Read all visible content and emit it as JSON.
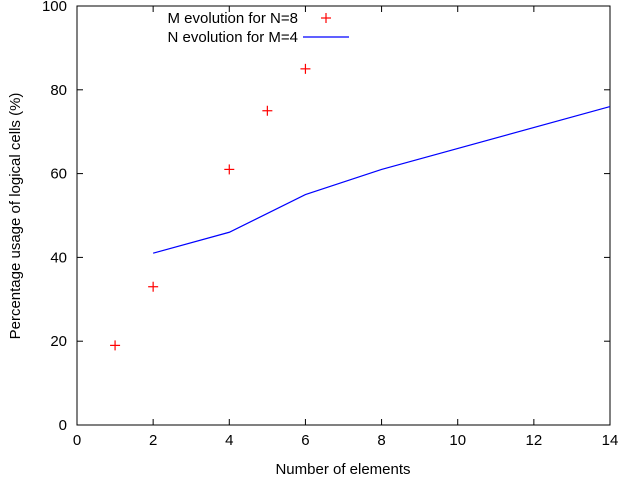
{
  "chart_data": {
    "type": "scatter+line",
    "title": "",
    "xlabel": "Number of elements",
    "ylabel": "Percentage usage of logical cells (%)",
    "xlim": [
      0,
      14
    ],
    "ylim": [
      0,
      100
    ],
    "xticks": [
      0,
      2,
      4,
      6,
      8,
      10,
      12,
      14
    ],
    "yticks": [
      0,
      20,
      40,
      60,
      80,
      100
    ],
    "grid": false,
    "legend_position": "top-left",
    "series": [
      {
        "name": "M evolution for N=8",
        "style": "points",
        "marker": "plus",
        "color": "#ff0000",
        "x": [
          1,
          2,
          4,
          5,
          6
        ],
        "y": [
          19,
          33,
          61,
          75,
          85
        ]
      },
      {
        "name": "N evolution for M=4",
        "style": "line",
        "color": "#0000ff",
        "x": [
          2,
          4,
          6,
          8,
          14
        ],
        "y": [
          41,
          46,
          55,
          61,
          76
        ]
      }
    ]
  }
}
